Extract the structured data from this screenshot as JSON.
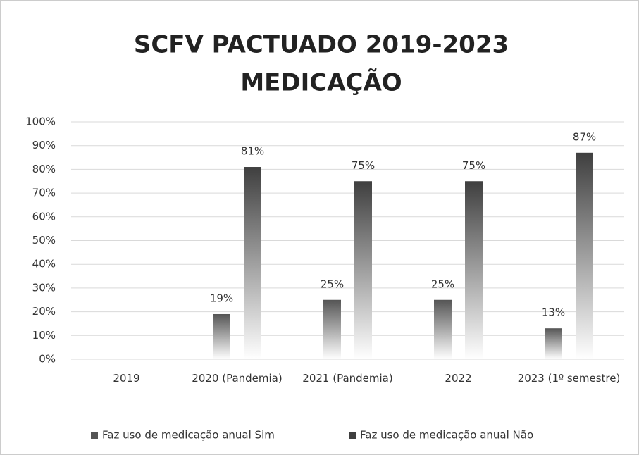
{
  "chart_data": {
    "type": "bar",
    "title": [
      "SCFV PACTUADO 2019-2023",
      "MEDICAÇÃO"
    ],
    "categories": [
      "2019",
      "2020 (Pandemia)",
      "2021 (Pandemia)",
      "2022",
      "2023 (1º semestre)"
    ],
    "series": [
      {
        "name": "Faz uso de medicação anual Sim",
        "color": "#555555",
        "values": [
          null,
          19,
          25,
          25,
          13
        ],
        "value_labels": [
          null,
          "19%",
          "25%",
          "25%",
          "13%"
        ]
      },
      {
        "name": "Faz uso de medicação anual Não",
        "color": "#3f3f3f",
        "values": [
          null,
          81,
          75,
          75,
          87
        ],
        "value_labels": [
          null,
          "81%",
          "75%",
          "75%",
          "87%"
        ]
      }
    ],
    "ylim": [
      0,
      100
    ],
    "yticks": [
      {
        "value": 0,
        "label": "0%"
      },
      {
        "value": 10,
        "label": "10%"
      },
      {
        "value": 20,
        "label": "20%"
      },
      {
        "value": 30,
        "label": "30%"
      },
      {
        "value": 40,
        "label": "40%"
      },
      {
        "value": 50,
        "label": "50%"
      },
      {
        "value": 60,
        "label": "60%"
      },
      {
        "value": 70,
        "label": "70%"
      },
      {
        "value": 80,
        "label": "80%"
      },
      {
        "value": 90,
        "label": "90%"
      },
      {
        "value": 100,
        "label": "100%"
      }
    ],
    "grid": true,
    "legend": "bottom"
  }
}
